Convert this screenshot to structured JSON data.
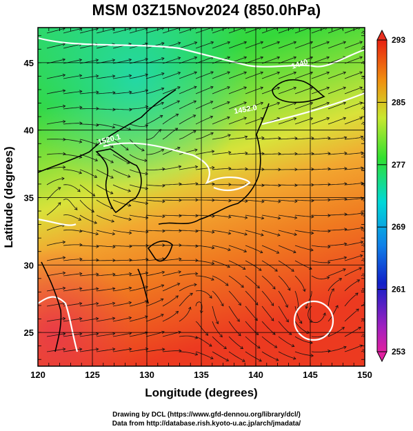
{
  "title": "MSM 03Z15Nov2024 (850.0hPa)",
  "map": {
    "x_axis": {
      "label": "Longitude (degrees)",
      "range": [
        120,
        150
      ],
      "ticks": [
        "120",
        "125",
        "130",
        "135",
        "140",
        "145",
        "150"
      ]
    },
    "y_axis": {
      "label": "Latitude  (degrees)",
      "range": [
        22.5,
        47.6
      ],
      "ticks": [
        "25",
        "30",
        "35",
        "40",
        "45"
      ]
    },
    "field": "temperature (K) shaded, geopotential height contours, streamlines",
    "contour_labels": [
      "1440",
      "1452.0",
      "1520.1"
    ],
    "high_center": {
      "lon": 145.3,
      "lat": 26.7
    }
  },
  "colorbar": {
    "labels": [
      "293",
      "285",
      "277",
      "269",
      "261",
      "253"
    ],
    "values": [
      293,
      285,
      277,
      269,
      261,
      253
    ],
    "min": 253,
    "max": 293,
    "colors": [
      "#e02060",
      "#0000cc",
      "#00c8e8",
      "#30e030",
      "#d8e830",
      "#f07000",
      "#e02000"
    ]
  },
  "credits": {
    "line1": "Drawing by DCL (https://www.gfd-dennou.org/library/dcl/)",
    "line2": "Data from http://database.rish.kyoto-u.ac.jp/arch/jmadata/"
  }
}
